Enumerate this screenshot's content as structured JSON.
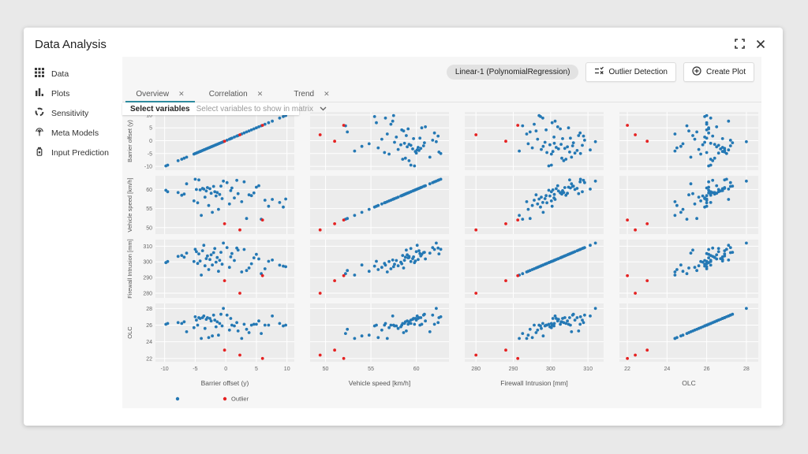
{
  "window": {
    "title": "Data Analysis"
  },
  "sidebar": {
    "items": [
      {
        "icon": "grid-icon",
        "label": "Data"
      },
      {
        "icon": "bar-chart-icon",
        "label": "Plots"
      },
      {
        "icon": "loop-icon",
        "label": "Sensitivity"
      },
      {
        "icon": "antenna-icon",
        "label": "Meta Models"
      },
      {
        "icon": "flask-icon",
        "label": "Input Prediction"
      }
    ]
  },
  "toolbar": {
    "model_chip": "Linear-1 (PolynomialRegression)",
    "outlier_label": "Outlier Detection",
    "create_label": "Create Plot"
  },
  "tabs": [
    {
      "label": "Overview",
      "active": true
    },
    {
      "label": "Correlation",
      "active": false
    },
    {
      "label": "Trend",
      "active": false
    }
  ],
  "variable_select": {
    "label": "Select variables",
    "placeholder": "Select variables to show in matrix"
  },
  "chart_data": {
    "type": "scatter",
    "matrix": true,
    "title": "Scatterplot matrix of 4 variables with outliers highlighted",
    "style": {
      "panel_bg": "#ececec",
      "grid_color": "#ffffff",
      "tick_color": "#666666",
      "label_color": "#555555"
    },
    "variables": [
      {
        "key": "bo",
        "label": "Barrier offset (y)",
        "ticks": [
          -10,
          -5,
          0,
          5,
          10
        ],
        "domain": [
          -11.5,
          11.2
        ]
      },
      {
        "key": "vs",
        "label": "Vehicle speed [km/h]",
        "ticks": [
          50,
          55,
          60
        ],
        "domain": [
          48.3,
          63.6
        ]
      },
      {
        "key": "fi",
        "label": "Firewall Intrusion [mm]",
        "ticks": [
          280,
          290,
          300,
          310
        ],
        "domain": [
          277,
          314.2
        ]
      },
      {
        "key": "olc",
        "label": "OLC",
        "ticks": [
          22,
          24,
          26,
          28
        ],
        "domain": [
          21.6,
          28.6
        ]
      }
    ],
    "series": [
      {
        "name": "",
        "color": "#2478b4",
        "points": [
          [
            -9.8,
            59.8,
            299.5,
            26.1
          ],
          [
            -9.5,
            59.4,
            300.2,
            26.2
          ],
          [
            -7.8,
            59.2,
            303.5,
            26.3
          ],
          [
            -7.2,
            58.5,
            304.1,
            26.2
          ],
          [
            -6.8,
            58.8,
            303.0,
            26.4
          ],
          [
            -6.4,
            61.5,
            305.6,
            25.2
          ],
          [
            -5.2,
            57.0,
            300.2,
            25.7
          ],
          [
            -5.0,
            62.7,
            308.0,
            27.0
          ],
          [
            -4.8,
            60.0,
            306.5,
            26.6
          ],
          [
            -4.6,
            56.5,
            299.0,
            26.0
          ],
          [
            -4.4,
            62.5,
            305.1,
            26.9
          ],
          [
            -4.2,
            59.9,
            300.6,
            26.8
          ],
          [
            -4.0,
            53.2,
            291.6,
            24.4
          ],
          [
            -3.8,
            60.3,
            307.1,
            26.9
          ],
          [
            -3.6,
            60.1,
            310.6,
            27.1
          ],
          [
            -3.4,
            58.0,
            297.5,
            25.6
          ],
          [
            -3.2,
            59.6,
            302.1,
            26.7
          ],
          [
            -3.0,
            60.5,
            303.8,
            26.9
          ],
          [
            -2.8,
            55.8,
            295.1,
            24.5
          ],
          [
            -2.6,
            60.2,
            301.5,
            26.8
          ],
          [
            -2.4,
            59.0,
            304.5,
            26.5
          ],
          [
            -2.2,
            54.0,
            298.0,
            24.7
          ],
          [
            -2.0,
            60.8,
            305.9,
            27.2
          ],
          [
            -1.8,
            59.4,
            308.5,
            26.6
          ],
          [
            -1.6,
            58.3,
            299.8,
            25.8
          ],
          [
            -1.4,
            59.2,
            302.8,
            26.4
          ],
          [
            -1.2,
            54.8,
            294.0,
            24.8
          ],
          [
            -1.0,
            58.7,
            301.0,
            26.2
          ],
          [
            -0.8,
            60.9,
            306.1,
            27.3
          ],
          [
            -0.6,
            57.6,
            298.5,
            25.9
          ],
          [
            -0.4,
            62.2,
            312.0,
            28.0
          ],
          [
            0.2,
            61.8,
            309.1,
            27.2
          ],
          [
            0.6,
            56.2,
            296.5,
            25.4
          ],
          [
            0.8,
            59.7,
            303.2,
            26.8
          ],
          [
            1.0,
            60.4,
            305.3,
            26.0
          ],
          [
            1.4,
            57.8,
            300.9,
            25.9
          ],
          [
            1.8,
            62.4,
            308.8,
            26.3
          ],
          [
            2.0,
            58.9,
            307.5,
            25.3
          ],
          [
            2.6,
            56.8,
            293.6,
            24.4
          ],
          [
            3.0,
            62.0,
            307.9,
            26.1
          ],
          [
            3.4,
            52.4,
            294.5,
            25.5
          ],
          [
            3.8,
            58.6,
            296.1,
            25.1
          ],
          [
            4.2,
            58.4,
            298.8,
            26.0
          ],
          [
            4.6,
            59.1,
            302.6,
            26.1
          ],
          [
            5.0,
            60.6,
            304.8,
            26.1
          ],
          [
            5.4,
            61.0,
            301.9,
            26.5
          ],
          [
            5.8,
            52.2,
            292.5,
            25.0
          ],
          [
            6.4,
            57.2,
            295.6,
            26.0
          ],
          [
            7.0,
            55.6,
            300.4,
            26.0
          ],
          [
            7.6,
            57.4,
            301.2,
            27.1
          ],
          [
            8.8,
            56.6,
            297.9,
            26.2
          ],
          [
            9.4,
            55.4,
            297.3,
            25.9
          ],
          [
            9.8,
            57.5,
            296.9,
            26.0
          ]
        ]
      },
      {
        "name": "Outlier",
        "color": "#e52222",
        "points": [
          [
            -0.2,
            51.0,
            288.0,
            23.0
          ],
          [
            2.3,
            49.4,
            280.0,
            22.4
          ],
          [
            6.0,
            52.0,
            291.2,
            22.0
          ]
        ]
      }
    ],
    "legend": [
      {
        "label": "",
        "color": "#2478b4"
      },
      {
        "label": "Outlier",
        "color": "#e52222"
      }
    ],
    "legend_position": "bottom-left",
    "grid": true
  }
}
